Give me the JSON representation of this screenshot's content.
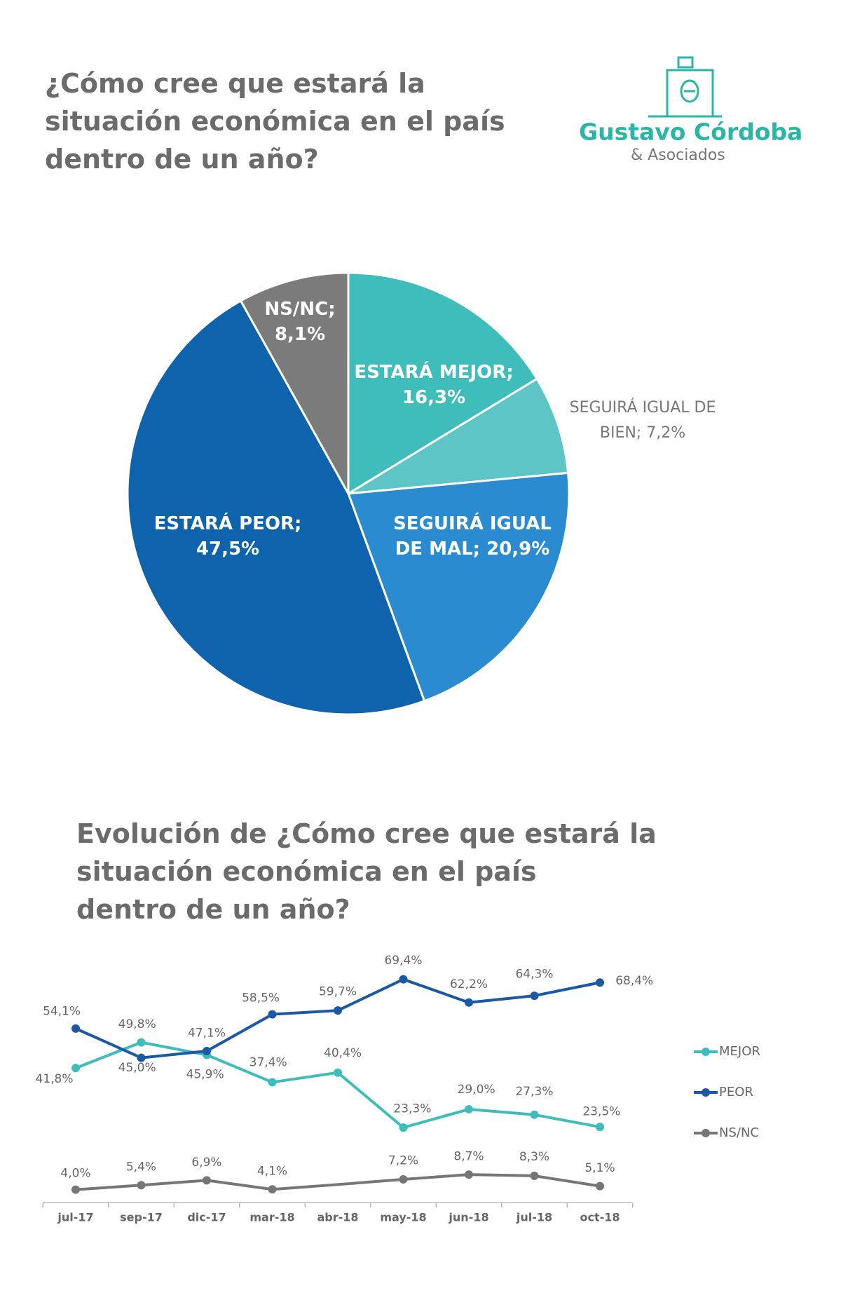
{
  "logo": {
    "name": "Gustavo Córdoba",
    "subtitle": "& Asociados"
  },
  "chart_data": [
    {
      "type": "pie",
      "title": "¿Cómo cree que estará la\nsituación económica en el país\ndentro de un año?",
      "categories": [
        "ESTARÁ MEJOR;",
        "SEGUIRÁ IGUAL DE BIEN;",
        "SEGUIRÁ IGUAL DE MAL;",
        "ESTARÁ PEOR;",
        "NS/NC;"
      ],
      "values": [
        16.3,
        7.2,
        20.9,
        47.5,
        8.1
      ],
      "value_labels": [
        "16,3%",
        "7,2%",
        "20,9%",
        "47,5%",
        "8,1%"
      ],
      "colors": [
        "#3fbdbb",
        "#5ec5c6",
        "#2a8bd1",
        "#0f62ac",
        "#7b7b7b"
      ]
    },
    {
      "type": "line",
      "title": "Evolución de  ¿Cómo cree que estará la\nsituación económica en el país\ndentro de un año?",
      "x": [
        "jul-17",
        "sep-17",
        "dic-17",
        "mar-18",
        "abr-18",
        "may-18",
        "jun-18",
        "jul-18",
        "oct-18"
      ],
      "ylim": [
        0,
        75
      ],
      "series": [
        {
          "name": "MEJOR",
          "color": "#3fbdbb",
          "values": [
            41.8,
            49.8,
            45.9,
            37.4,
            40.4,
            23.3,
            29.0,
            27.3,
            23.5
          ],
          "value_labels": [
            "41,8%",
            "49,8%",
            "45,9%",
            "37,4%",
            "40,4%",
            "23,3%",
            "29,0%",
            "27,3%",
            "23,5%"
          ]
        },
        {
          "name": "PEOR",
          "color": "#1c59a5",
          "values": [
            54.1,
            45.0,
            47.1,
            58.5,
            59.7,
            69.4,
            62.2,
            64.3,
            68.4
          ],
          "value_labels": [
            "54,1%",
            "45,0%",
            "47,1%",
            "58,5%",
            "59,7%",
            "69,4%",
            "62,2%",
            "64,3%",
            "68,4%"
          ]
        },
        {
          "name": "NS/NC",
          "color": "#767676",
          "values": [
            4.0,
            5.4,
            6.9,
            4.1,
            5.6,
            7.2,
            8.7,
            8.3,
            5.1
          ],
          "value_labels": [
            "4,0%",
            "5,4%",
            "6,9%",
            "4,1%",
            null,
            "7,2%",
            "8,7%",
            "8,3%",
            "5,1%"
          ]
        }
      ]
    }
  ]
}
